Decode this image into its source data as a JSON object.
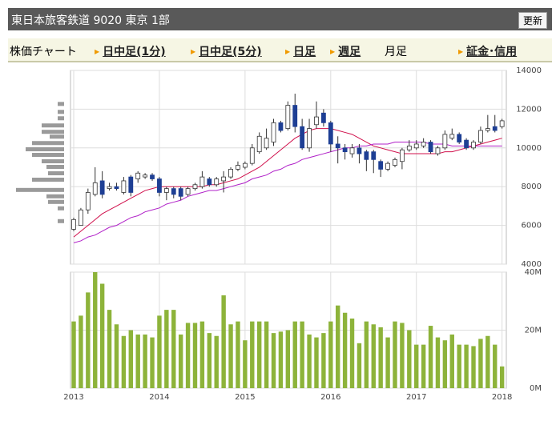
{
  "header": {
    "title": "東日本旅客鉄道 9020 東京 1部",
    "button": "更新"
  },
  "nav": {
    "items": [
      "株価チャート",
      "日中足(1分)",
      "日中足(5分)",
      "日足",
      "週足",
      "月足",
      "証金･信用"
    ]
  },
  "chart_data": [
    {
      "type": "candlestick",
      "xlim": [
        -0.45,
        60.6
      ],
      "ylim": [
        4000,
        14000
      ],
      "yticks": [
        4000,
        6000,
        8000,
        10000,
        12000,
        14000
      ],
      "grid": true,
      "up_color": "#ffffff",
      "down_color": "#1e3f94",
      "open": [
        5800,
        6000,
        6800,
        7600,
        8300,
        7900,
        8000,
        7700,
        8500,
        8400,
        8500,
        8600,
        8400,
        7700,
        7900,
        7900,
        7600,
        7900,
        8000,
        8400,
        8100,
        8300,
        8500,
        8900,
        9000,
        9200,
        9800,
        10000,
        10300,
        11300,
        11000,
        12200,
        11100,
        10000,
        11200,
        11800,
        11300,
        10200,
        10000,
        9700,
        10000,
        9800,
        9800,
        9300,
        8900,
        9100,
        9300,
        9900,
        10000,
        10100,
        10300,
        9700,
        10000,
        10500,
        10700,
        10400,
        10000,
        10300,
        10900,
        11100,
        11100
      ],
      "high": [
        6400,
        6900,
        7900,
        9000,
        8800,
        8200,
        8200,
        8500,
        8600,
        8800,
        8700,
        8700,
        8500,
        8000,
        8000,
        8000,
        8000,
        8200,
        8800,
        8500,
        8500,
        8800,
        9000,
        9300,
        9300,
        10200,
        10800,
        11000,
        11500,
        11400,
        12400,
        12800,
        11500,
        11500,
        12400,
        12000,
        11400,
        10600,
        10200,
        10200,
        10200,
        9900,
        9900,
        9400,
        9300,
        9500,
        10000,
        10400,
        10400,
        10500,
        10400,
        10100,
        10900,
        11000,
        10800,
        10500,
        10400,
        11100,
        11700,
        11700,
        11500
      ],
      "low": [
        5700,
        6000,
        6600,
        7500,
        7400,
        7800,
        7800,
        7600,
        7500,
        8200,
        8400,
        8300,
        7500,
        7300,
        7400,
        7300,
        7500,
        7800,
        7900,
        8000,
        8000,
        7700,
        8400,
        8800,
        8900,
        9100,
        9700,
        9900,
        10100,
        10800,
        10900,
        10800,
        9900,
        9800,
        11000,
        11100,
        9800,
        9200,
        9400,
        9500,
        9200,
        8800,
        8700,
        8500,
        8800,
        9000,
        8900,
        9800,
        9900,
        10000,
        9700,
        9600,
        9900,
        10400,
        10200,
        9900,
        9900,
        10200,
        10800,
        10800,
        11000
      ],
      "close": [
        6300,
        6800,
        7700,
        8200,
        7600,
        8000,
        7900,
        8300,
        7700,
        8700,
        8600,
        8400,
        7700,
        7900,
        7600,
        7500,
        7900,
        8100,
        8500,
        8100,
        8400,
        8500,
        8900,
        9100,
        9200,
        10000,
        10600,
        10500,
        11300,
        10900,
        12200,
        11100,
        10000,
        11000,
        11600,
        11300,
        10200,
        10000,
        9800,
        10000,
        9700,
        9400,
        9400,
        8900,
        9200,
        9400,
        9900,
        10100,
        10200,
        10300,
        9800,
        10000,
        10700,
        10700,
        10300,
        10000,
        10300,
        10900,
        11000,
        10900,
        11400
      ],
      "ma": [
        {
          "color": "#d0104c",
          "values": [
            5400,
            5700,
            6000,
            6300,
            6600,
            6800,
            7000,
            7200,
            7400,
            7600,
            7800,
            7900,
            8000,
            8000,
            8000,
            8000,
            8000,
            8000,
            8000,
            8100,
            8100,
            8200,
            8300,
            8400,
            8600,
            8800,
            9000,
            9300,
            9600,
            9900,
            10200,
            10500,
            10700,
            10900,
            11000,
            11000,
            11000,
            10900,
            10800,
            10700,
            10500,
            10300,
            10100,
            10000,
            9900,
            9800,
            9700,
            9700,
            9700,
            9700,
            9700,
            9700,
            9800,
            9800,
            9900,
            10000,
            10100,
            10200,
            10300,
            10400,
            10500
          ]
        },
        {
          "color": "#b020c8",
          "values": [
            5100,
            5200,
            5400,
            5500,
            5700,
            5900,
            6000,
            6200,
            6400,
            6500,
            6700,
            6800,
            6900,
            7100,
            7200,
            7300,
            7500,
            7600,
            7700,
            7800,
            7800,
            7900,
            8000,
            8100,
            8200,
            8400,
            8500,
            8600,
            8800,
            8900,
            9100,
            9200,
            9400,
            9500,
            9600,
            9700,
            9800,
            9900,
            10000,
            10000,
            10100,
            10100,
            10200,
            10200,
            10200,
            10300,
            10300,
            10300,
            10300,
            10300,
            10200,
            10200,
            10200,
            10100,
            10100,
            10100,
            10100,
            10100,
            10100,
            10100,
            10100
          ]
        }
      ],
      "volume_profile": {
        "color": "#9a9a9a",
        "prices": [
          12270,
          11860,
          11530,
          11160,
          10830,
          10580,
          10250,
          9930,
          9640,
          9310,
          9020,
          8690,
          8360,
          7830,
          7500,
          7210,
          6880,
          6220
        ],
        "values": [
          8,
          8,
          8,
          28,
          28,
          18,
          40,
          48,
          40,
          28,
          22,
          20,
          40,
          60,
          22,
          20,
          8,
          8
        ]
      }
    },
    {
      "type": "bar",
      "color": "#8db33a",
      "xlim": [
        -0.45,
        60.6
      ],
      "xticks": [
        {
          "value": 0,
          "label": "2013"
        },
        {
          "value": 12,
          "label": "2014"
        },
        {
          "value": 24,
          "label": "2015"
        },
        {
          "value": 36,
          "label": "2016"
        },
        {
          "value": 48,
          "label": "2017"
        },
        {
          "value": 60,
          "label": "2018"
        }
      ],
      "ylim": [
        0,
        40
      ],
      "yticks": [
        {
          "value": 0,
          "label": "0M"
        },
        {
          "value": 20,
          "label": "20M"
        },
        {
          "value": 40,
          "label": "40M"
        }
      ],
      "grid": true,
      "values": [
        23,
        25,
        33,
        40,
        36,
        27,
        22,
        18,
        20,
        18.5,
        18.5,
        17.5,
        25,
        27,
        27,
        18.5,
        22.5,
        22.5,
        23,
        19,
        18,
        32,
        22,
        23,
        16.5,
        23,
        23,
        23,
        19,
        19.5,
        20,
        23,
        23,
        18.5,
        17.5,
        19,
        23,
        28.5,
        26,
        24,
        15.5,
        23,
        22,
        21,
        17.5,
        23,
        22.5,
        20,
        15,
        15,
        21.5,
        17.5,
        16.5,
        18.5,
        15,
        15,
        14.5,
        17,
        18,
        15,
        7.5
      ]
    }
  ]
}
